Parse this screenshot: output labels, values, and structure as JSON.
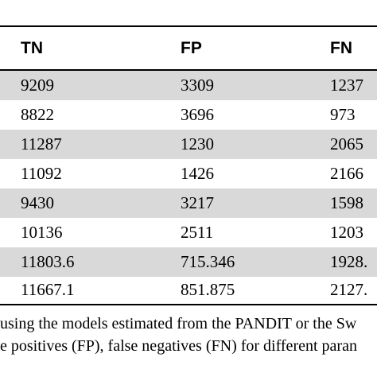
{
  "table": {
    "headers": [
      "TN",
      "FP",
      "FN"
    ],
    "rows": [
      [
        "9209",
        "3309",
        "1237"
      ],
      [
        "8822",
        "3696",
        "973"
      ],
      [
        "11287",
        "1230",
        "2065"
      ],
      [
        "11092",
        "1426",
        "2166"
      ],
      [
        "9430",
        "3217",
        "1598"
      ],
      [
        "10136",
        "2511",
        "1203"
      ],
      [
        "11803.6",
        "715.346",
        "1928."
      ],
      [
        "11667.1",
        "851.875",
        "2127."
      ]
    ]
  },
  "caption": {
    "line1": "using the models estimated from the PANDIT or the Sw",
    "line2": "e positives (FP), false negatives (FN) for different paran"
  }
}
